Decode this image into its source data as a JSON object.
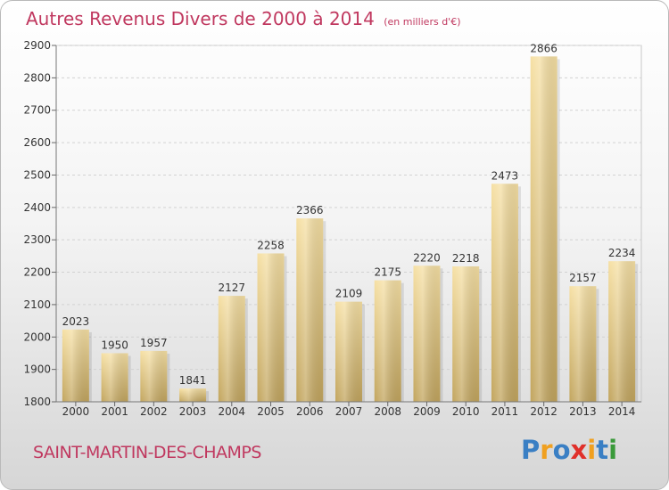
{
  "title": "Autres Revenus Divers de 2000 à 2014",
  "subtitle": "(en milliers d'€)",
  "commune": "SAINT-MARTIN-DES-CHAMPS",
  "logo": {
    "text": "Proxiti",
    "colors": [
      "#3a7fc4",
      "#f0a020",
      "#3a7fc4",
      "#e0302a",
      "#f0a020",
      "#3a7fc4",
      "#3a9a3a"
    ]
  },
  "colors": {
    "title": "#c0385f",
    "bar_light": "#f4dc9c",
    "bar_dark": "#c6aa62"
  },
  "chart_data": {
    "type": "bar",
    "categories": [
      "2000",
      "2001",
      "2002",
      "2003",
      "2004",
      "2005",
      "2006",
      "2007",
      "2008",
      "2009",
      "2010",
      "2011",
      "2012",
      "2013",
      "2014"
    ],
    "values": [
      2023,
      1950,
      1957,
      1841,
      2127,
      2258,
      2366,
      2109,
      2175,
      2220,
      2218,
      2473,
      2866,
      2157,
      2234
    ],
    "ylim": [
      1800,
      2900
    ],
    "yticks": [
      1800,
      1900,
      2000,
      2100,
      2200,
      2300,
      2400,
      2500,
      2600,
      2700,
      2800,
      2900
    ],
    "grid": true,
    "xlabel": "",
    "ylabel": ""
  }
}
